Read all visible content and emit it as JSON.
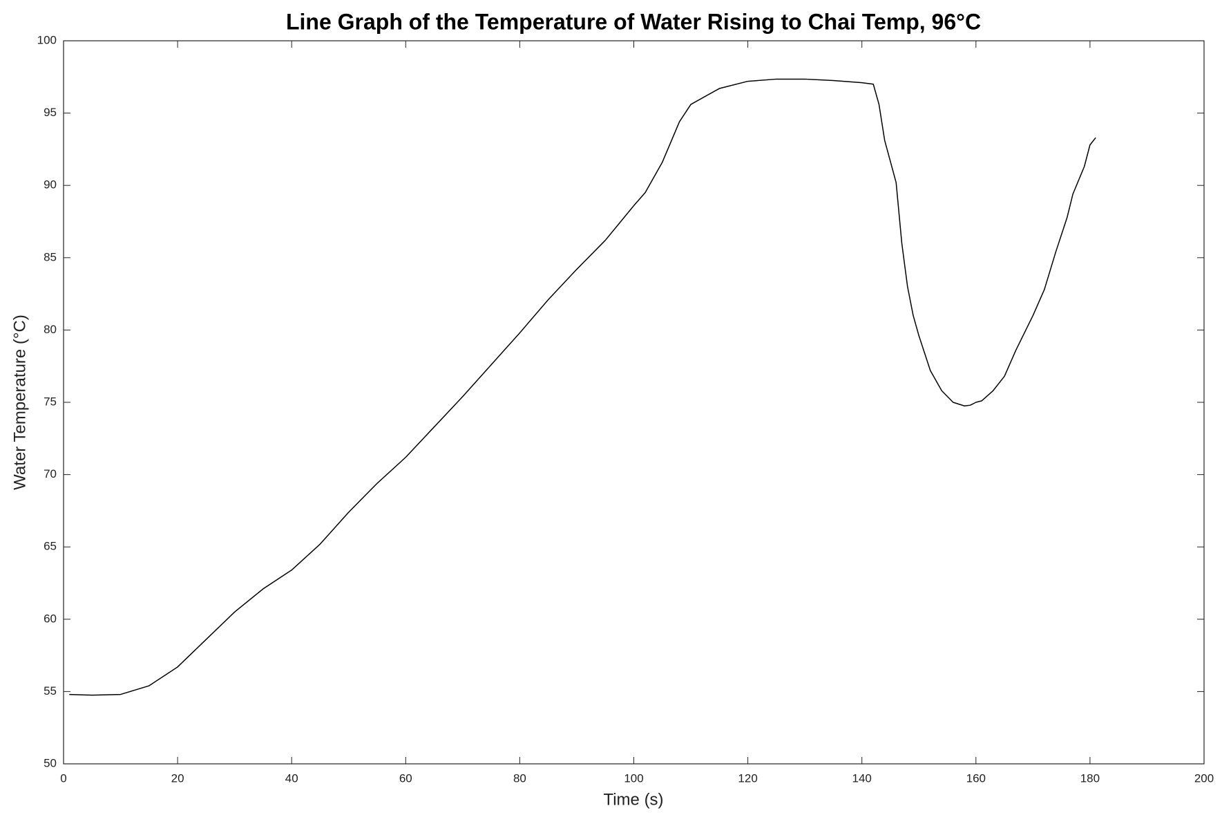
{
  "chart_data": {
    "type": "line",
    "title": "Line Graph of the Temperature of Water Rising to Chai Temp, 96°C",
    "x_label": "Time (s)",
    "y_label": "Water Temperature (°C)",
    "x": [
      1,
      5,
      10,
      15,
      20,
      25,
      30,
      35,
      40,
      45,
      50,
      55,
      60,
      65,
      70,
      75,
      80,
      85,
      90,
      95,
      100,
      102,
      105,
      108,
      110,
      115,
      120,
      125,
      130,
      135,
      140,
      142,
      143,
      144,
      146,
      147,
      148,
      149,
      150,
      152,
      154,
      156,
      158,
      159,
      160,
      161,
      163,
      165,
      167,
      170,
      172,
      174,
      176,
      177,
      179,
      180,
      181
    ],
    "series": [
      {
        "color": "#000000",
        "values": [
          54.8,
          54.75,
          54.8,
          55.4,
          56.7,
          58.6,
          60.5,
          62.1,
          63.4,
          65.2,
          67.4,
          69.4,
          71.2,
          73.3,
          75.4,
          77.6,
          79.8,
          82.1,
          84.2,
          86.2,
          88.6,
          89.5,
          91.6,
          94.4,
          95.6,
          96.7,
          97.2,
          97.35,
          97.35,
          97.25,
          97.1,
          97.0,
          95.6,
          93.1,
          90.2,
          86.0,
          83.0,
          81.0,
          79.6,
          77.2,
          75.8,
          75.0,
          74.75,
          74.8,
          75.0,
          75.1,
          75.8,
          76.8,
          78.6,
          81.0,
          82.8,
          85.4,
          87.8,
          89.4,
          91.3,
          92.8,
          93.3
        ]
      }
    ],
    "xlim": [
      0,
      200
    ],
    "xticks": [
      0,
      20,
      40,
      60,
      80,
      100,
      120,
      140,
      160,
      180,
      200
    ],
    "ylim": [
      50,
      100
    ],
    "yticks": [
      50,
      55,
      60,
      65,
      70,
      75,
      80,
      85,
      90,
      95,
      100
    ],
    "grid": false
  }
}
